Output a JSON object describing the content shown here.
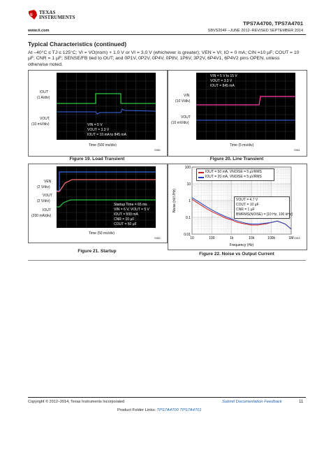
{
  "header": {
    "company_line1": "TEXAS",
    "company_line2": "INSTRUMENTS",
    "part_numbers": "TPS7A4700, TPS7A4701",
    "url": "www.ti.com",
    "doc_rev": "SBVS204F –JUNE 2012–REVISED SEPTEMBER 2014"
  },
  "section": {
    "title": "Typical Characteristics (continued)",
    "conditions_1": "At –40°C ≤ TJ ≤ 125°C; VI = VO(nom) + 1.0 V or VI = 3.0 V (whichever is greater); VEN = VI; IO = 0 mA; CIN =10 µF; COUT = 10",
    "conditions_2": "µF; CNR = 1 µF; SENSE/FB tied to OUT; and 0P1V, 0P2V, 0P4V, 0P8V, 1P6V, 3P2V, 6P4V1, 6P4V2 pins OPEN, unless",
    "conditions_3": "otherwise noted."
  },
  "fig19": {
    "caption": "Figure 19. Load Transient",
    "iout_label": "IOUT",
    "iout_scale": "(1 A/div)",
    "vout_label": "VOUT",
    "vout_scale": "(10 mV/div)",
    "cond1": "VIN = 5 V",
    "cond2": "VOUT = 3.3 V",
    "cond3": "IOUT = 10 mA to 845 mA",
    "time": "Time (500 ms/div)",
    "code": "G060"
  },
  "fig20": {
    "caption": "Figure 20. Line Transient",
    "cond1": "VIN = 5 V to 15 V",
    "cond2": "VOUT = 3.3 V",
    "cond3": "IOUT = 845 mA",
    "vin_label": "VIN",
    "vin_scale": "(10 V/div)",
    "vout_label": "VOUT",
    "vout_scale": "(10 mV/div)",
    "time": "Time (5 ms/div)",
    "code": "G061"
  },
  "fig21": {
    "caption": "Figure 21. Startup",
    "ven_label": "VEN",
    "ven_scale": "(2 V/div)",
    "vout_label": "VOUT",
    "vout_scale": "(2 V/div)",
    "iout_label": "IOUT",
    "iout_scale": "(200 mA/div)",
    "cond1": "Startup Time = 65 ms",
    "cond2": "VIN = 6 V, VOUT = 5 V",
    "cond3": "IOUT = 500 mA",
    "cond4": "CNR = 10 µF",
    "cond5": "COUT = 50 µF",
    "time": "Time (50 ms/div)",
    "code": "G062"
  },
  "fig22": {
    "caption": "Figure 22. Noise vs Output Current",
    "ylabel": "Noise (nV/√Hz)",
    "xlabel": "Frequency (Hz)",
    "legend1": "IOUT = 50 mA, VNOISE = 5 µVRMS",
    "legend2": "IOUT = 20 mA, VNOISE = 5 µVRMS",
    "cond1": "VOUT = 4.7 V",
    "cond2": "COUT = 10 µF",
    "cond3": "CNR = 1 µF",
    "cond4": "BWRMS(NOISE) = [10 Hz, 100 kHz]",
    "code": "G019"
  },
  "chart_data": {
    "type": "line",
    "title": "Noise vs Output Current",
    "xlabel": "Frequency (Hz)",
    "ylabel": "Noise (nV/√Hz)",
    "x_scale": "log",
    "y_scale": "log",
    "xlim": [
      10,
      1000000
    ],
    "ylim": [
      0.01,
      100
    ],
    "x_ticks": [
      "10",
      "100",
      "1k",
      "10k",
      "100k",
      "1M"
    ],
    "y_ticks": [
      "100",
      "10",
      "1",
      "0.1",
      "0.01"
    ],
    "x": [
      10,
      20,
      50,
      100,
      200,
      500,
      1000,
      2000,
      5000,
      10000,
      20000,
      50000,
      100000,
      200000,
      500000,
      1000000
    ],
    "series": [
      {
        "name": "IOUT = 50 mA, VNOISE = 5 µVRMS",
        "color": "#d42020",
        "values": [
          1.2,
          0.7,
          0.35,
          0.22,
          0.15,
          0.09,
          0.07,
          0.05,
          0.04,
          0.035,
          0.035,
          0.04,
          0.05,
          0.06,
          0.04,
          0.02
        ]
      },
      {
        "name": "IOUT = 20 mA, VNOISE = 5 µVRMS",
        "color": "#1f3fbf",
        "values": [
          1.5,
          0.9,
          0.45,
          0.28,
          0.18,
          0.11,
          0.08,
          0.06,
          0.045,
          0.04,
          0.04,
          0.045,
          0.05,
          0.06,
          0.04,
          0.02
        ]
      }
    ],
    "grid": true,
    "legend_position": "top"
  },
  "footer": {
    "copyright": "Copyright © 2012–2014, Texas Instruments Incorporated",
    "feedback": "Submit Documentation Feedback",
    "page_number": "11",
    "folder_prefix": "Product Folder Links:",
    "link1": "TPS7A4700",
    "link2": "TPS7A4701"
  }
}
